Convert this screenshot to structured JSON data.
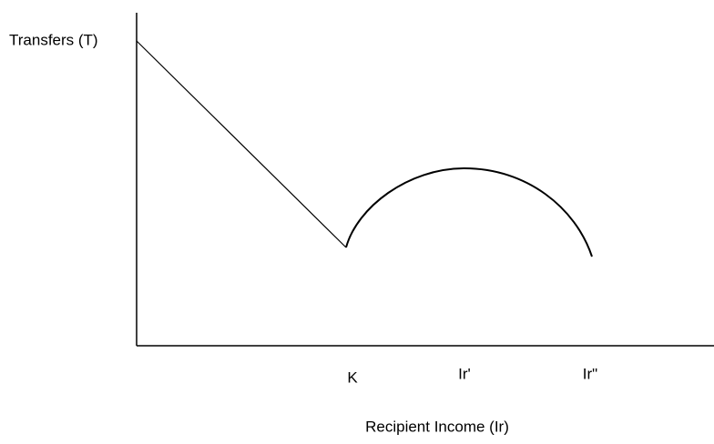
{
  "y_axis": {
    "label": "Transfers (T)"
  },
  "x_axis": {
    "label": "Recipient Income (Ir)",
    "points": [
      "K",
      "Ir'",
      "Ir\""
    ]
  }
}
